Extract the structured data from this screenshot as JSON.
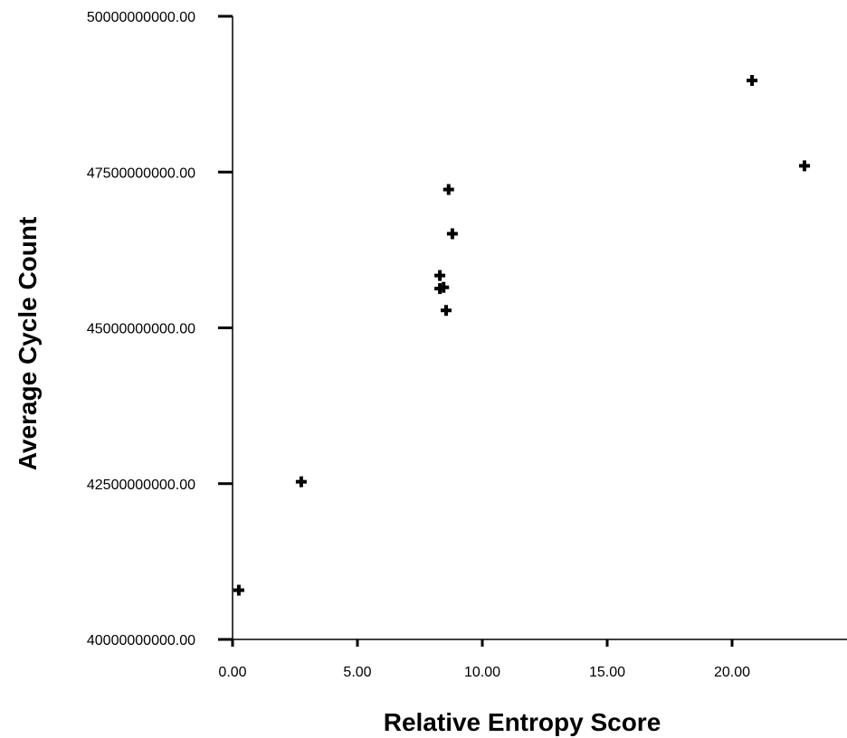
{
  "chart_data": {
    "type": "scatter",
    "xlabel": "Relative Entropy Score",
    "ylabel": "Average Cycle Count",
    "xlim": [
      0,
      24.5
    ],
    "ylim": [
      40000000000,
      50000000000
    ],
    "x_ticks": [
      {
        "value": 0,
        "label": "0.00"
      },
      {
        "value": 5,
        "label": "5.00"
      },
      {
        "value": 10,
        "label": "10.00"
      },
      {
        "value": 15,
        "label": "15.00"
      },
      {
        "value": 20,
        "label": "20.00"
      }
    ],
    "y_ticks": [
      {
        "value": 40000000000,
        "label": "40000000000.00"
      },
      {
        "value": 42500000000,
        "label": "42500000000.00"
      },
      {
        "value": 45000000000,
        "label": "45000000000.00"
      },
      {
        "value": 47500000000,
        "label": "47500000000.00"
      },
      {
        "value": 50000000000,
        "label": "50000000000.00"
      }
    ],
    "grid": false,
    "marker": "plus",
    "points": [
      {
        "x": 0.25,
        "y": 40790000000
      },
      {
        "x": 2.75,
        "y": 42530000000
      },
      {
        "x": 8.3,
        "y": 45840000000
      },
      {
        "x": 8.3,
        "y": 45630000000
      },
      {
        "x": 8.45,
        "y": 45650000000
      },
      {
        "x": 8.55,
        "y": 45280000000
      },
      {
        "x": 8.65,
        "y": 47220000000
      },
      {
        "x": 8.8,
        "y": 46510000000
      },
      {
        "x": 20.8,
        "y": 48970000000
      },
      {
        "x": 22.9,
        "y": 47600000000
      }
    ]
  }
}
